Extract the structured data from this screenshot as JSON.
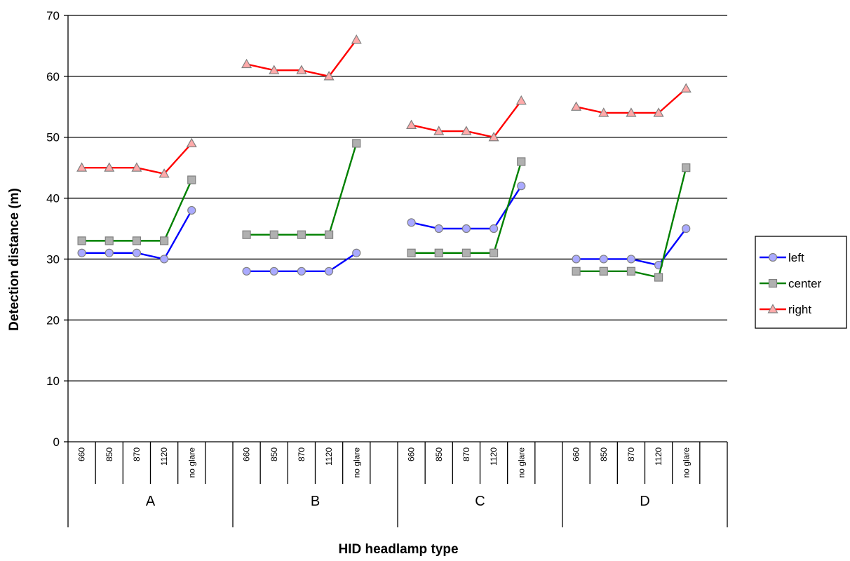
{
  "chart_data": {
    "type": "line",
    "title": "",
    "xlabel": "HID headlamp type",
    "ylabel": "Detection distance (m)",
    "ylim": [
      0,
      70
    ],
    "yticks": [
      0,
      10,
      20,
      30,
      40,
      50,
      60,
      70
    ],
    "grid": "horizontal",
    "legend_position": "right",
    "groups": [
      "A",
      "B",
      "C",
      "D"
    ],
    "subcategories": [
      "660",
      "850",
      "870",
      "1120",
      "no glare"
    ],
    "series": [
      {
        "name": "left",
        "color": "#0000ff",
        "marker": "circle",
        "marker_fill": "#aaaaff",
        "values": [
          [
            31,
            31,
            31,
            30,
            38
          ],
          [
            28,
            28,
            28,
            28,
            31
          ],
          [
            36,
            35,
            35,
            35,
            42
          ],
          [
            30,
            30,
            30,
            29,
            35
          ]
        ]
      },
      {
        "name": "center",
        "color": "#008000",
        "marker": "square",
        "marker_fill": "#b0b0b0",
        "values": [
          [
            33,
            33,
            33,
            33,
            43
          ],
          [
            34,
            34,
            34,
            34,
            49
          ],
          [
            31,
            31,
            31,
            31,
            46
          ],
          [
            28,
            28,
            28,
            27,
            45
          ]
        ]
      },
      {
        "name": "right",
        "color": "#ff0000",
        "marker": "triangle",
        "marker_fill": "#ffaaaa",
        "values": [
          [
            45,
            45,
            45,
            44,
            49
          ],
          [
            62,
            61,
            61,
            60,
            66
          ],
          [
            52,
            51,
            51,
            50,
            56
          ],
          [
            55,
            54,
            54,
            54,
            58
          ]
        ]
      }
    ]
  }
}
